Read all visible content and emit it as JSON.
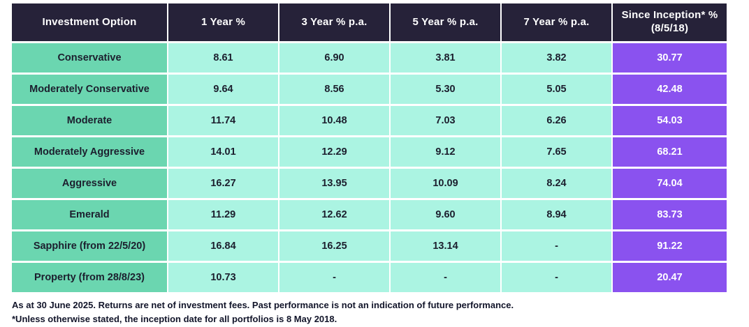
{
  "chart_data": {
    "type": "table",
    "title": "Investment option performance table",
    "columns": [
      "Investment Option",
      "1 Year %",
      "3 Year % p.a.",
      "5 Year % p.a.",
      "7 Year % p.a.",
      "Since Inception* % (8/5/18)"
    ],
    "rows": [
      {
        "name": "Conservative",
        "values": [
          "8.61",
          "6.90",
          "3.81",
          "3.82",
          "30.77"
        ]
      },
      {
        "name": "Moderately Conservative",
        "values": [
          "9.64",
          "8.56",
          "5.30",
          "5.05",
          "42.48"
        ]
      },
      {
        "name": "Moderate",
        "values": [
          "11.74",
          "10.48",
          "7.03",
          "6.26",
          "54.03"
        ]
      },
      {
        "name": "Moderately Aggressive",
        "values": [
          "14.01",
          "12.29",
          "9.12",
          "7.65",
          "68.21"
        ]
      },
      {
        "name": "Aggressive",
        "values": [
          "16.27",
          "13.95",
          "10.09",
          "8.24",
          "74.04"
        ]
      },
      {
        "name": "Emerald",
        "values": [
          "11.29",
          "12.62",
          "9.60",
          "8.94",
          "83.73"
        ]
      },
      {
        "name": "Sapphire (from 22/5/20)",
        "values": [
          "16.84",
          "16.25",
          "13.14",
          "-",
          "91.22"
        ]
      },
      {
        "name": "Property (from 28/8/23)",
        "values": [
          "10.73",
          "-",
          "-",
          "-",
          "20.47"
        ]
      }
    ]
  },
  "header": {
    "col0": "Investment Option",
    "col1": "1 Year %",
    "col2": "3 Year % p.a.",
    "col3": "5 Year % p.a.",
    "col4": "7 Year % p.a.",
    "col5_line1": "Since Inception* %",
    "col5_line2": "(8/5/18)"
  },
  "footnotes": {
    "line1": "As at 30 June 2025. Returns are net of investment fees. Past performance is not an indication of future performance.",
    "line2": "*Unless otherwise stated, the inception date for all portfolios is 8 May 2018."
  },
  "colors": {
    "header_bg": "#262239",
    "header_text": "#ffffff",
    "row_label_bg": "#6BD6B0",
    "data_cell_bg": "#ABF4E2",
    "inception_bg": "#8A52EF",
    "inception_text": "#ffffff",
    "cell_text": "#1C1F2E",
    "grid_lines": "#ffffff"
  }
}
